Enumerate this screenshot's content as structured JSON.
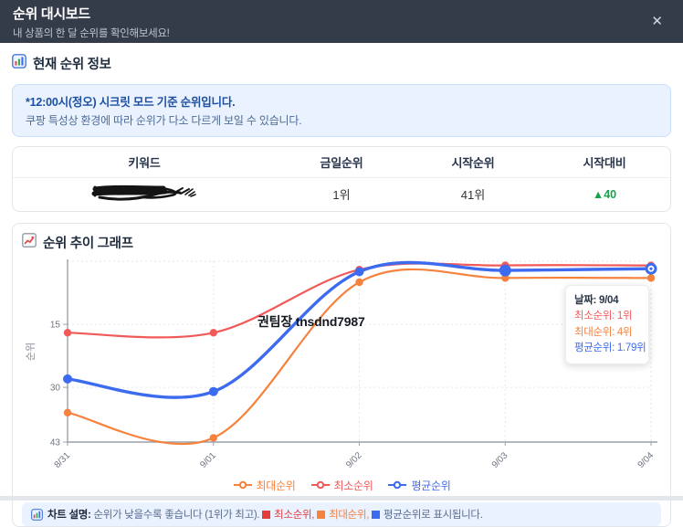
{
  "header": {
    "title": "순위 대시보드",
    "subtitle": "내 상품의 한 달 순위를 확인해보세요!",
    "close_glyph": "✕"
  },
  "current_rank": {
    "section_title": "현재 순위 정보",
    "notice": {
      "headline": "*12:00시(정오) 시크릿 모드 기준 순위입니다.",
      "detail": "쿠팡 특성상 환경에 따라 순위가 다소 다르게 보일 수 있습니다."
    },
    "table": {
      "headers": [
        "키워드",
        "금일순위",
        "시작순위",
        "시작대비"
      ],
      "row": {
        "keyword_redacted": true,
        "today_rank": "1위",
        "start_rank": "41위",
        "start_delta": "▲40",
        "delta_color": "#17a34a"
      }
    }
  },
  "chart_section": {
    "section_title": "순위 추이 그래프",
    "watermark": "권팀장 tnsdnd7987",
    "tooltip": {
      "lines": [
        {
          "text": "날짜: 9/04",
          "color": "#2b3648",
          "bold": true
        },
        {
          "text": "최소순위: 1위",
          "color": "#f25a5a"
        },
        {
          "text": "최대순위: 4위",
          "color": "#f5823d"
        },
        {
          "text": "평균순위: 1.79위",
          "color": "#3d6bf0"
        }
      ]
    },
    "legend": [
      {
        "label": "최대순위",
        "color": "#f5823d"
      },
      {
        "label": "최소순위",
        "color": "#f25a5a"
      },
      {
        "label": "평균순위",
        "color": "#3d6bf0"
      }
    ],
    "footnote": {
      "segments": [
        {
          "text": "차트 설명:",
          "color": "#1e2b3c",
          "bold": true
        },
        {
          "text": " 순위가 낮을수록 좋습니다 (1위가 최고).",
          "color": "#5a6d8f"
        },
        {
          "text": " 최소순위,",
          "color": "#e23d3d",
          "square": "#e23d3d"
        },
        {
          "text": " 최대순위,",
          "color": "#f5823d",
          "square": "#f5823d"
        },
        {
          "text": " 평균순위로 표시됩니다.",
          "color": "#5a6d8f",
          "square": "#3d6bf0"
        }
      ]
    }
  },
  "chart_data": {
    "type": "line",
    "x": [
      "8/31",
      "9/01",
      "9/02",
      "9/03",
      "9/04"
    ],
    "series": [
      {
        "name": "최소순위",
        "color": "#f25a5a",
        "values": [
          17,
          17,
          2,
          1,
          1
        ],
        "line_width": 2.2,
        "point_radius": 4.2
      },
      {
        "name": "최대순위",
        "color": "#f5823d",
        "values": [
          36,
          42,
          5,
          4,
          4
        ],
        "line_width": 2.2,
        "point_radius": 4.2
      },
      {
        "name": "평균순위",
        "color": "#3d6bf0",
        "values": [
          28,
          31,
          2.5,
          2.2,
          1.79
        ],
        "line_width": 3.4,
        "point_radius": 5
      }
    ],
    "ylabel": "순위",
    "ylim": [
      0,
      43
    ],
    "yticks": [
      15,
      30,
      43
    ],
    "grid_ranks": [
      0,
      15,
      30
    ],
    "y_inverted": true,
    "active_point": {
      "series": "평균순위",
      "index": 4
    },
    "emphasized_point": {
      "series": "평균순위",
      "index": 3
    },
    "legend_position": "bottom"
  }
}
